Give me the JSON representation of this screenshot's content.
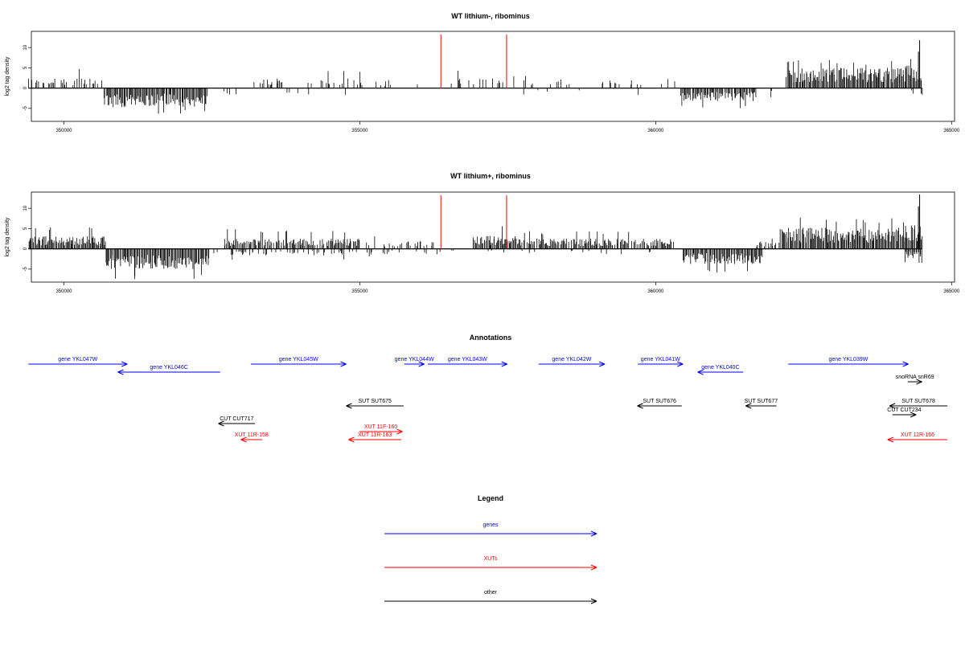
{
  "chart_data": [
    {
      "type": "bar",
      "title": "WT lithium-, ribominus",
      "ylabel": "log2 tag density",
      "xlabel": "",
      "xlim": [
        349450,
        365050
      ],
      "ylim": [
        -8.2,
        14
      ],
      "x_ticks": [
        350000,
        355000,
        360000,
        365000
      ],
      "y_ticks": [
        -5,
        0,
        5,
        10
      ],
      "markers": [
        356370,
        357480
      ],
      "marker_top": 13.2,
      "positive_regions": [
        {
          "from": 349400,
          "to": 350670,
          "density": 0.45,
          "avg": 2.0,
          "max": 4.8
        },
        {
          "from": 353170,
          "to": 355050,
          "density": 0.3,
          "avg": 2.0,
          "max": 4.5
        },
        {
          "from": 355060,
          "to": 356200,
          "density": 0.08,
          "avg": 1.6,
          "max": 3.2
        },
        {
          "from": 356300,
          "to": 357600,
          "density": 0.2,
          "avg": 2.1,
          "max": 4.8
        },
        {
          "from": 357600,
          "to": 359300,
          "density": 0.12,
          "avg": 1.8,
          "max": 3.0
        },
        {
          "from": 359300,
          "to": 360400,
          "density": 0.08,
          "avg": 1.6,
          "max": 2.5
        },
        {
          "from": 362200,
          "to": 364180,
          "density": 1.0,
          "avg": 4.0,
          "max": 7.0
        },
        {
          "from": 364180,
          "to": 364500,
          "density": 1.0,
          "avg": 4.5,
          "max": 7.5
        }
      ],
      "negative_regions": [
        {
          "from": 350670,
          "to": 352420,
          "density": 1.0,
          "avg": -3.8,
          "max": -6.5
        },
        {
          "from": 360420,
          "to": 361700,
          "density": 0.9,
          "avg": -2.6,
          "max": -5.2
        },
        {
          "from": 361700,
          "to": 362000,
          "density": 0.2,
          "avg": -1.8,
          "max": -3.0
        },
        {
          "from": 352600,
          "to": 355000,
          "density": 0.06,
          "avg": -1.4,
          "max": -2.5
        },
        {
          "from": 357700,
          "to": 359800,
          "density": 0.03,
          "avg": -1.4,
          "max": -2.2
        },
        {
          "from": 364300,
          "to": 364500,
          "density": 0.5,
          "avg": -1.5,
          "max": -2.5
        }
      ],
      "spikes": [
        {
          "x": 364460,
          "y": 11.8
        },
        {
          "x": 364440,
          "y": 9.0
        }
      ]
    },
    {
      "type": "bar",
      "title": "WT lithium+, ribominus",
      "ylabel": "log2 tag density",
      "xlabel": "",
      "xlim": [
        349450,
        365050
      ],
      "ylim": [
        -8.2,
        14
      ],
      "x_ticks": [
        350000,
        355000,
        360000,
        365000
      ],
      "y_ticks": [
        -5,
        0,
        5,
        10
      ],
      "markers": [
        356370,
        357480
      ],
      "marker_top": 13.2,
      "positive_regions": [
        {
          "from": 349400,
          "to": 350700,
          "density": 1.0,
          "avg": 2.5,
          "max": 5.8
        },
        {
          "from": 352700,
          "to": 355000,
          "density": 0.8,
          "avg": 2.0,
          "max": 5.0
        },
        {
          "from": 355000,
          "to": 356250,
          "density": 0.4,
          "avg": 1.6,
          "max": 3.5
        },
        {
          "from": 356900,
          "to": 357700,
          "density": 1.0,
          "avg": 2.6,
          "max": 6.5
        },
        {
          "from": 357700,
          "to": 360300,
          "density": 0.85,
          "avg": 2.0,
          "max": 4.5
        },
        {
          "from": 361700,
          "to": 362100,
          "density": 0.5,
          "avg": 1.5,
          "max": 3.0
        },
        {
          "from": 362100,
          "to": 364200,
          "density": 1.0,
          "avg": 4.2,
          "max": 8.0
        },
        {
          "from": 364200,
          "to": 364500,
          "density": 1.0,
          "avg": 5.0,
          "max": 8.5
        }
      ],
      "negative_regions": [
        {
          "from": 350700,
          "to": 352450,
          "density": 1.0,
          "avg": -4.0,
          "max": -7.5
        },
        {
          "from": 360450,
          "to": 361800,
          "density": 1.0,
          "avg": -3.0,
          "max": -6.0
        },
        {
          "from": 352500,
          "to": 355000,
          "density": 0.3,
          "avg": -1.3,
          "max": -2.8
        },
        {
          "from": 355000,
          "to": 360300,
          "density": 0.1,
          "avg": -1.1,
          "max": -2.0
        },
        {
          "from": 364200,
          "to": 364500,
          "density": 1.0,
          "avg": -1.8,
          "max": -4.0
        }
      ],
      "spikes": [
        {
          "x": 364460,
          "y": 13.4
        },
        {
          "x": 364440,
          "y": 10.5
        }
      ]
    }
  ],
  "annotations": {
    "title": "Annotations",
    "items": [
      {
        "label": "gene YKL047W",
        "start": 349400,
        "end": 351070,
        "strand": "+",
        "row": 0,
        "category": "genes"
      },
      {
        "label": "gene YKL046C",
        "start": 350910,
        "end": 352640,
        "strand": "-",
        "row": 1,
        "category": "genes"
      },
      {
        "label": "gene YKL045W",
        "start": 353160,
        "end": 354770,
        "strand": "+",
        "row": 0,
        "category": "genes"
      },
      {
        "label": "gene YKL044W",
        "start": 355750,
        "end": 356090,
        "strand": "+",
        "row": 0,
        "category": "genes"
      },
      {
        "label": "gene YKL043W",
        "start": 356150,
        "end": 357490,
        "strand": "+",
        "row": 0,
        "category": "genes"
      },
      {
        "label": "gene YKL042W",
        "start": 358020,
        "end": 359140,
        "strand": "+",
        "row": 0,
        "category": "genes"
      },
      {
        "label": "gene YKL041W",
        "start": 359700,
        "end": 360460,
        "strand": "+",
        "row": 0,
        "category": "genes"
      },
      {
        "label": "gene YKL040C",
        "start": 360710,
        "end": 361480,
        "strand": "-",
        "row": 1,
        "category": "genes"
      },
      {
        "label": "gene YKL039W",
        "start": 362240,
        "end": 364270,
        "strand": "+",
        "row": 0,
        "category": "genes"
      },
      {
        "label": "snoRNA snR69",
        "start": 364260,
        "end": 364500,
        "strand": "+",
        "row": 2,
        "category": "other"
      },
      {
        "label": "SUT SUT675",
        "start": 354770,
        "end": 355740,
        "strand": "-",
        "row": 3,
        "category": "other"
      },
      {
        "label": "SUT SUT676",
        "start": 359690,
        "end": 360440,
        "strand": "-",
        "row": 3,
        "category": "other"
      },
      {
        "label": "SUT SUT677",
        "start": 361520,
        "end": 362040,
        "strand": "-",
        "row": 3,
        "category": "other"
      },
      {
        "label": "SUT SUT678",
        "start": 363950,
        "end": 364930,
        "strand": "-",
        "row": 3,
        "category": "other"
      },
      {
        "label": "CUT CUT234",
        "start": 364000,
        "end": 364400,
        "strand": "+",
        "row": 4,
        "category": "other"
      },
      {
        "label": "CUT CUT717",
        "start": 352610,
        "end": 353230,
        "strand": "-",
        "row": 5,
        "category": "other"
      },
      {
        "label": "XUT 11F-160",
        "start": 354990,
        "end": 355720,
        "strand": "+",
        "row": 6,
        "category": "XUTs"
      },
      {
        "label": "XUT 11R-158",
        "start": 352990,
        "end": 353350,
        "strand": "-",
        "row": 7,
        "category": "XUTs"
      },
      {
        "label": "XUT 11R-163",
        "start": 354810,
        "end": 355700,
        "strand": "-",
        "row": 7,
        "category": "XUTs"
      },
      {
        "label": "XUT 11R-166",
        "start": 363920,
        "end": 364930,
        "strand": "-",
        "row": 7,
        "category": "XUTs"
      }
    ]
  },
  "legend": {
    "title": "Legend",
    "items": [
      {
        "label": "genes",
        "category": "genes"
      },
      {
        "label": "XUTs",
        "category": "XUTs"
      },
      {
        "label": "other",
        "category": "other"
      }
    ]
  },
  "colors": {
    "genes": "#0000ff",
    "XUTs": "#ff0000",
    "other": "#000000",
    "marker": "#ff0000",
    "signal": "#000000"
  }
}
